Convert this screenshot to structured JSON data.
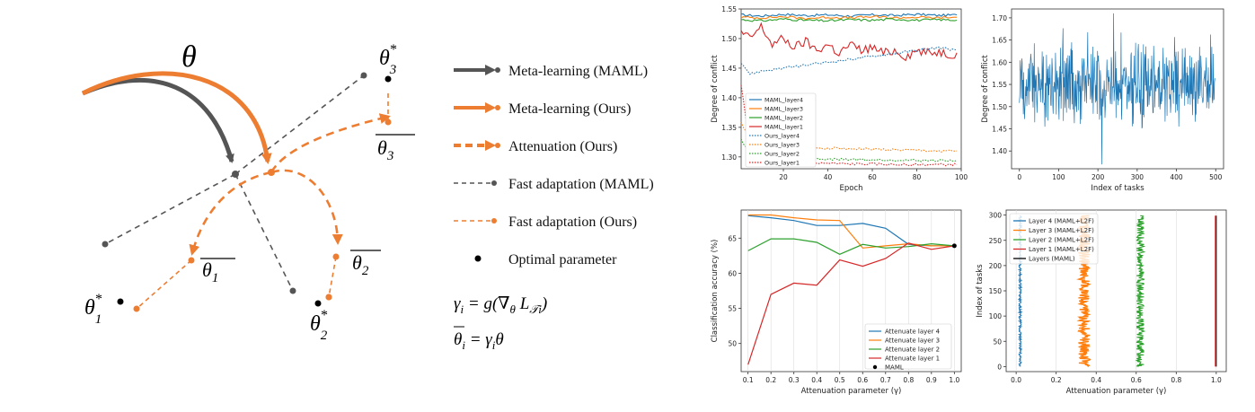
{
  "colors": {
    "maml": "#555555",
    "ours": "#ED7D31",
    "optimal": "#000000",
    "c_blue": "#1f77b4",
    "c_orange": "#ff7f0e",
    "c_green": "#2ca02c",
    "c_red": "#d62728",
    "c_black": "#000000",
    "grid": "#dddddd"
  },
  "diagram": {
    "theta_label": "θ",
    "theta_star_1": "θ",
    "theta_star_2": "θ",
    "theta_star_3": "θ",
    "theta_star_sup": "*",
    "sub_1": "1",
    "sub_2": "2",
    "sub_3": "3",
    "theta_bar_1": "θ",
    "theta_bar_2": "θ",
    "theta_bar_3": "θ",
    "legend": [
      {
        "label": "Meta-learning (MAML)",
        "style": "maml-thick"
      },
      {
        "label": "Meta-learning (Ours)",
        "style": "ours-thick"
      },
      {
        "label": "Attenuation (Ours)",
        "style": "ours-dashed-thick"
      },
      {
        "label": "Fast adaptation (MAML)",
        "style": "maml-dashed"
      },
      {
        "label": "Fast adaptation (Ours)",
        "style": "ours-dashed"
      },
      {
        "label": "Optimal parameter",
        "style": "dot"
      }
    ],
    "eq1": "γi = g(∇θ L𝒯i)",
    "eq2": "θi = γi θ"
  },
  "chart_data": [
    {
      "type": "line",
      "xlabel": "Epoch",
      "ylabel": "Degree of conflict",
      "xlim": [
        1,
        100
      ],
      "ylim": [
        1.28,
        1.55
      ],
      "xticks": [
        "20",
        "40",
        "60",
        "80",
        "100"
      ],
      "yticks": [
        "1.30",
        "1.35",
        "1.40",
        "1.45",
        "1.50",
        "1.55"
      ],
      "legend_position": "lower-left",
      "series": [
        {
          "name": "MAML_layer4",
          "color": "#1f77b4",
          "dash": false,
          "x": [
            1,
            10,
            20,
            30,
            40,
            50,
            60,
            70,
            80,
            90,
            98
          ],
          "y": [
            1.54,
            1.538,
            1.541,
            1.539,
            1.54,
            1.538,
            1.54,
            1.539,
            1.541,
            1.539,
            1.54
          ]
        },
        {
          "name": "MAML_layer3",
          "color": "#ff7f0e",
          "dash": false,
          "x": [
            1,
            10,
            20,
            30,
            40,
            50,
            60,
            70,
            80,
            90,
            98
          ],
          "y": [
            1.536,
            1.535,
            1.537,
            1.534,
            1.536,
            1.535,
            1.537,
            1.535,
            1.536,
            1.535,
            1.536
          ]
        },
        {
          "name": "MAML_layer2",
          "color": "#2ca02c",
          "dash": false,
          "x": [
            1,
            10,
            20,
            30,
            40,
            50,
            60,
            70,
            80,
            90,
            98
          ],
          "y": [
            1.532,
            1.53,
            1.533,
            1.531,
            1.53,
            1.532,
            1.531,
            1.533,
            1.531,
            1.532,
            1.531
          ]
        },
        {
          "name": "MAML_layer1",
          "color": "#d62728",
          "dash": false,
          "x": [
            1,
            5,
            10,
            15,
            20,
            25,
            30,
            35,
            40,
            45,
            50,
            55,
            60,
            65,
            70,
            75,
            80,
            85,
            90,
            95,
            98
          ],
          "y": [
            1.51,
            1.5,
            1.52,
            1.49,
            1.5,
            1.485,
            1.495,
            1.48,
            1.49,
            1.475,
            1.49,
            1.48,
            1.485,
            1.475,
            1.48,
            1.47,
            1.48,
            1.475,
            1.478,
            1.473,
            1.476
          ]
        },
        {
          "name": "Ours_layer4",
          "color": "#1f77b4",
          "dash": true,
          "x": [
            1,
            5,
            10,
            20,
            30,
            40,
            50,
            60,
            70,
            80,
            90,
            98
          ],
          "y": [
            1.46,
            1.44,
            1.445,
            1.45,
            1.455,
            1.46,
            1.465,
            1.47,
            1.475,
            1.48,
            1.485,
            1.48
          ]
        },
        {
          "name": "Ours_layer3",
          "color": "#ff7f0e",
          "dash": true,
          "x": [
            1,
            5,
            10,
            20,
            30,
            40,
            50,
            60,
            70,
            80,
            90,
            98
          ],
          "y": [
            1.36,
            1.325,
            1.32,
            1.318,
            1.316,
            1.315,
            1.314,
            1.313,
            1.312,
            1.311,
            1.31,
            1.31
          ]
        },
        {
          "name": "Ours_layer2",
          "color": "#2ca02c",
          "dash": true,
          "x": [
            1,
            5,
            10,
            20,
            30,
            40,
            50,
            60,
            70,
            80,
            90,
            98
          ],
          "y": [
            1.33,
            1.305,
            1.3,
            1.298,
            1.297,
            1.296,
            1.296,
            1.295,
            1.295,
            1.294,
            1.294,
            1.294
          ]
        },
        {
          "name": "Ours_layer1",
          "color": "#d62728",
          "dash": true,
          "x": [
            1,
            5,
            10,
            20,
            30,
            40,
            50,
            60,
            70,
            80,
            90,
            98
          ],
          "y": [
            1.42,
            1.32,
            1.3,
            1.292,
            1.29,
            1.289,
            1.288,
            1.288,
            1.287,
            1.287,
            1.287,
            1.287
          ]
        }
      ]
    },
    {
      "type": "line",
      "xlabel": "Index of tasks",
      "ylabel": "Degree of conflict",
      "xlim": [
        -20,
        520
      ],
      "ylim": [
        1.36,
        1.72
      ],
      "xticks": [
        "0",
        "100",
        "200",
        "300",
        "400",
        "500"
      ],
      "yticks": [
        "1.40",
        "1.45",
        "1.50",
        "1.55",
        "1.60",
        "1.65",
        "1.70"
      ],
      "series": [
        {
          "name": "",
          "color": "#1f77b4",
          "noise": true,
          "n": 500,
          "mean": 1.55,
          "amplitude": 0.09,
          "min": 1.37,
          "max": 1.71
        }
      ]
    },
    {
      "type": "line",
      "xlabel": "Attenuation parameter (γ)",
      "ylabel": "Classification accuracy (%)",
      "xlim": [
        0.07,
        1.03
      ],
      "ylim": [
        46,
        69
      ],
      "xticks": [
        "0.1",
        "0.2",
        "0.3",
        "0.4",
        "0.5",
        "0.6",
        "0.7",
        "0.8",
        "0.9",
        "1.0"
      ],
      "yticks": [
        "50",
        "55",
        "60",
        "65"
      ],
      "legend_position": "lower-right",
      "x": [
        0.1,
        0.2,
        0.3,
        0.4,
        0.5,
        0.6,
        0.7,
        0.8,
        0.9,
        1.0
      ],
      "series": [
        {
          "name": "Attenuate layer 4",
          "color": "#1f77b4",
          "values": [
            68.2,
            67.9,
            67.5,
            66.8,
            66.8,
            67.1,
            66.4,
            64.1,
            63.9,
            63.9
          ]
        },
        {
          "name": "Attenuate layer 3",
          "color": "#ff7f0e",
          "values": [
            68.3,
            68.3,
            67.9,
            67.6,
            67.5,
            63.6,
            63.9,
            64.2,
            63.9,
            63.9
          ]
        },
        {
          "name": "Attenuate layer 2",
          "color": "#2ca02c",
          "values": [
            63.2,
            64.9,
            64.9,
            64.4,
            62.7,
            64.1,
            63.6,
            63.8,
            64.2,
            63.9
          ]
        },
        {
          "name": "Attenuate layer 1",
          "color": "#d62728",
          "values": [
            47.0,
            57.0,
            58.6,
            58.3,
            61.9,
            61.0,
            62.1,
            64.3,
            63.4,
            63.9
          ]
        }
      ],
      "points": [
        {
          "name": "MAML",
          "x": 1.0,
          "y": 63.9,
          "color": "#000000"
        }
      ]
    },
    {
      "type": "line",
      "xlabel": "Attenuation parameter (γ)",
      "ylabel": "Index of tasks",
      "xlim": [
        -0.05,
        1.05
      ],
      "ylim": [
        -10,
        310
      ],
      "xticks": [
        "0.0",
        "0.2",
        "0.4",
        "0.6",
        "0.8",
        "1.0"
      ],
      "yticks": [
        "0",
        "50",
        "100",
        "150",
        "200",
        "250",
        "300"
      ],
      "legend_position": "upper-left",
      "series": [
        {
          "name": "Layer 4 (MAML+L2F)",
          "color": "#1f77b4",
          "center": 0.02,
          "spread": 0.006,
          "n": 300
        },
        {
          "name": "Layer 3 (MAML+L2F)",
          "color": "#ff7f0e",
          "center": 0.34,
          "spread": 0.03,
          "n": 300
        },
        {
          "name": "Layer 2 (MAML+L2F)",
          "color": "#2ca02c",
          "center": 0.62,
          "spread": 0.02,
          "n": 300
        },
        {
          "name": "Layer 1 (MAML+L2F)",
          "color": "#d62728",
          "center": 0.995,
          "spread": 0.0,
          "n": 300
        },
        {
          "name": "Layers (MAML)",
          "color": "#000000",
          "center": 1.0,
          "spread": 0.0,
          "n": 300
        }
      ]
    }
  ]
}
